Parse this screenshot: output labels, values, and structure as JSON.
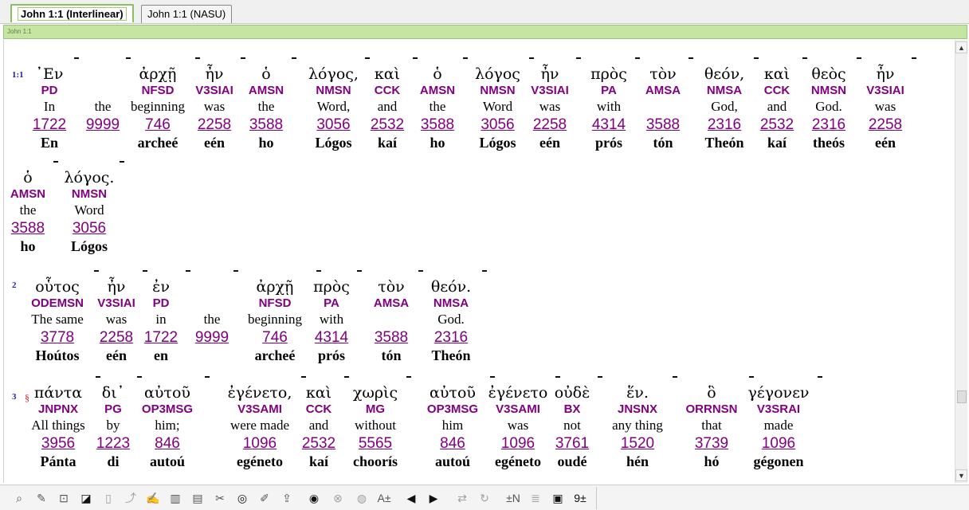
{
  "tabs": [
    {
      "label": "John 1:1 (Interlinear)",
      "active": true
    },
    {
      "label": "John 1:1 (NASU)",
      "active": false
    }
  ],
  "reference_bar": "John 1:1",
  "verses": [
    {
      "ref": "1:1",
      "paragraph_mark": "",
      "lines": [
        [
          {
            "greek": "᾿Εν",
            "morph": "PD",
            "english": "In",
            "strong": "1722",
            "translit": "En"
          },
          {
            "greek": "",
            "morph": "",
            "english": "the",
            "strong": "9999",
            "translit": ""
          },
          {
            "greek": "ἀρχῇ",
            "morph": "NFSD",
            "english": "beginning",
            "strong": "746",
            "translit": "archeé"
          },
          {
            "greek": "ἦν",
            "morph": "V3SIAI",
            "english": "was",
            "strong": "2258",
            "translit": "eén"
          },
          {
            "greek": "ὁ",
            "morph": "AMSN",
            "english": "the",
            "strong": "3588",
            "translit": "ho"
          },
          {
            "greek": "λόγος,",
            "morph": "NMSN",
            "english": "Word,",
            "strong": "3056",
            "translit": "Lógos"
          },
          {
            "greek": "καὶ",
            "morph": "CCK",
            "english": "and",
            "strong": "2532",
            "translit": "kaí"
          },
          {
            "greek": "ὁ",
            "morph": "AMSN",
            "english": "the",
            "strong": "3588",
            "translit": "ho"
          },
          {
            "greek": "λόγος",
            "morph": "NMSN",
            "english": "Word",
            "strong": "3056",
            "translit": "Lógos"
          },
          {
            "greek": "ἦν",
            "morph": "V3SIAI",
            "english": "was",
            "strong": "2258",
            "translit": "eén"
          },
          {
            "greek": "πρὸς",
            "morph": "PA",
            "english": "with",
            "strong": "4314",
            "translit": "prós"
          },
          {
            "greek": "τὸν",
            "morph": "AMSA",
            "english": "",
            "strong": "3588",
            "translit": "tón"
          },
          {
            "greek": "θεόν,",
            "morph": "NMSA",
            "english": "God,",
            "strong": "2316",
            "translit": "Theón"
          },
          {
            "greek": "καὶ",
            "morph": "CCK",
            "english": "and",
            "strong": "2532",
            "translit": "kaí"
          },
          {
            "greek": "θεὸς",
            "morph": "NMSN",
            "english": "God.",
            "strong": "2316",
            "translit": "theós"
          },
          {
            "greek": "ἦν",
            "morph": "V3SIAI",
            "english": "was",
            "strong": "2258",
            "translit": "eén"
          }
        ],
        [
          {
            "greek": "ὁ",
            "morph": "AMSN",
            "english": "the",
            "strong": "3588",
            "translit": "ho"
          },
          {
            "greek": "λόγος.",
            "morph": "NMSN",
            "english": "Word",
            "strong": "3056",
            "translit": "Lógos"
          }
        ]
      ]
    },
    {
      "ref": "2",
      "paragraph_mark": "",
      "lines": [
        [
          {
            "greek": "οὗτος",
            "morph": "ODEMSN",
            "english": "The same",
            "strong": "3778",
            "translit": "Hoútos"
          },
          {
            "greek": "ἦν",
            "morph": "V3SIAI",
            "english": "was",
            "strong": "2258",
            "translit": "eén"
          },
          {
            "greek": "ἐν",
            "morph": "PD",
            "english": "in",
            "strong": "1722",
            "translit": "en"
          },
          {
            "greek": "",
            "morph": "",
            "english": "the",
            "strong": "9999",
            "translit": ""
          },
          {
            "greek": "ἀρχῇ",
            "morph": "NFSD",
            "english": "beginning",
            "strong": "746",
            "translit": "archeé"
          },
          {
            "greek": "πρὸς",
            "morph": "PA",
            "english": "with",
            "strong": "4314",
            "translit": "prós"
          },
          {
            "greek": "τὸν",
            "morph": "AMSA",
            "english": "",
            "strong": "3588",
            "translit": "tón"
          },
          {
            "greek": "θεόν.",
            "morph": "NMSA",
            "english": "God.",
            "strong": "2316",
            "translit": "Theón"
          }
        ]
      ]
    },
    {
      "ref": "3",
      "paragraph_mark": "§",
      "lines": [
        [
          {
            "greek": "πάντα",
            "morph": "JNPNX",
            "english": "All things",
            "strong": "3956",
            "translit": "Pánta"
          },
          {
            "greek": "δι᾿",
            "morph": "PG",
            "english": "by",
            "strong": "1223",
            "translit": "di"
          },
          {
            "greek": "αὐτοῦ",
            "morph": "OP3MSG",
            "english": "him;",
            "strong": "846",
            "translit": "autoú"
          },
          {
            "greek": "ἐγένετο,",
            "morph": "V3SAMI",
            "english": "were made",
            "strong": "1096",
            "translit": "egéneto"
          },
          {
            "greek": "καὶ",
            "morph": "CCK",
            "english": "and",
            "strong": "2532",
            "translit": "kaí"
          },
          {
            "greek": "χωρὶς",
            "morph": "MG",
            "english": "without",
            "strong": "5565",
            "translit": "choorís"
          },
          {
            "greek": "αὐτοῦ",
            "morph": "OP3MSG",
            "english": "him",
            "strong": "846",
            "translit": "autoú"
          },
          {
            "greek": "ἐγένετο",
            "morph": "V3SAMI",
            "english": "was",
            "strong": "1096",
            "translit": "egéneto"
          },
          {
            "greek": "οὐδὲ",
            "morph": "BX",
            "english": "not",
            "strong": "3761",
            "translit": "oudé"
          },
          {
            "greek": "ἕν.",
            "morph": "JNSNX",
            "english": "any thing",
            "strong": "1520",
            "translit": "hén"
          },
          {
            "greek": "ὃ",
            "morph": "ORRNSN",
            "english": "that",
            "strong": "3739",
            "translit": "hó"
          },
          {
            "greek": "γέγονεν",
            "morph": "V3SRAI",
            "english": "made",
            "strong": "1096",
            "translit": "gégonen"
          }
        ]
      ]
    }
  ],
  "toolbar_icons": [
    "search-icon",
    "annotate-icon",
    "zoom-icon",
    "navigate-icon",
    "copy-icon",
    "highlight-icon",
    "word-study-icon",
    "bookmark-icon",
    "notes-icon",
    "link-icon",
    "strongs-icon",
    "edit-icon",
    "export-icon",
    "dark-circle-icon",
    "cancel-icon",
    "audio-icon",
    "font-size-icon",
    "back-arrow-icon",
    "forward-arrow-icon",
    "split-icon",
    "sync-icon",
    "interlinear-toggle-icon",
    "list-icon",
    "frame-icon",
    "number-toggle-icon"
  ]
}
